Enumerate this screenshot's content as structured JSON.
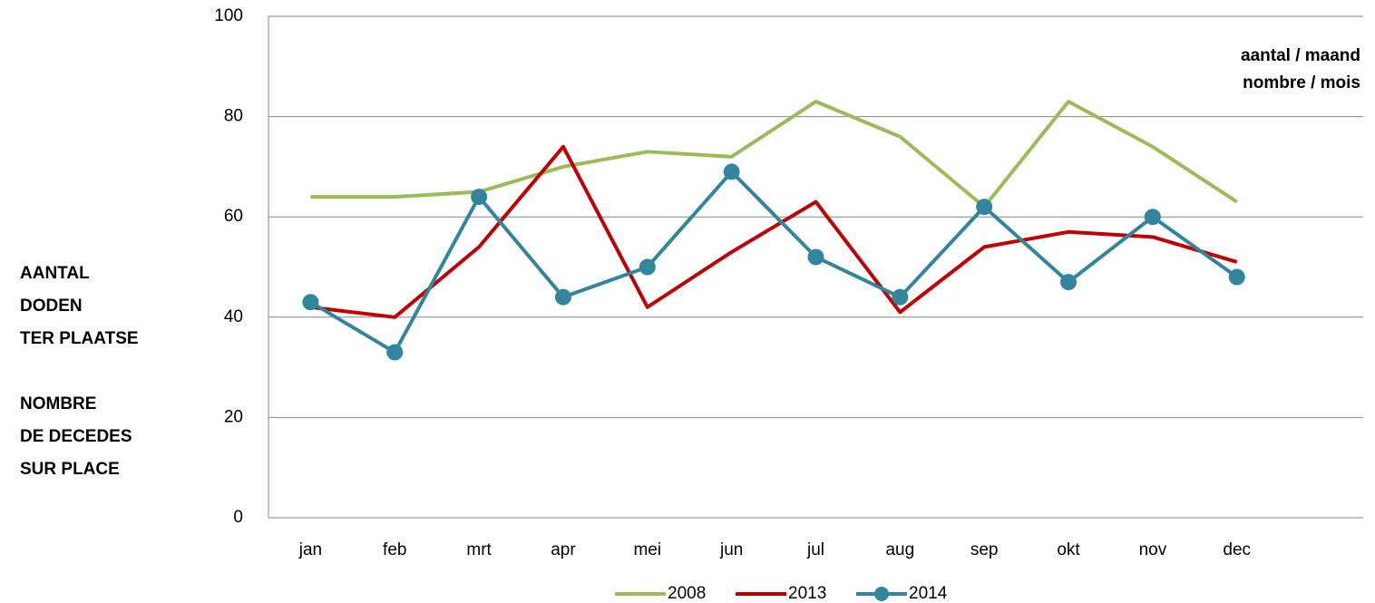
{
  "chart_data": {
    "type": "line",
    "y_label_lines": [
      "AANTAL",
      "DODEN",
      "TER PLAATSE",
      "",
      "NOMBRE",
      "DE DECEDES",
      "SUR PLACE"
    ],
    "annotation_lines": [
      "aantal / maand",
      "nombre / mois"
    ],
    "categories": [
      "jan",
      "feb",
      "mrt",
      "apr",
      "mei",
      "jun",
      "jul",
      "aug",
      "sep",
      "okt",
      "nov",
      "dec",
      null
    ],
    "series": [
      {
        "name": "2008",
        "color": "#9bbb59",
        "marker": false,
        "values": [
          64,
          64,
          65,
          70,
          73,
          72,
          83,
          76,
          62,
          83,
          74,
          63,
          null
        ]
      },
      {
        "name": "2013",
        "color": "#c00000",
        "marker": false,
        "values": [
          42,
          40,
          54,
          74,
          42,
          53,
          63,
          41,
          54,
          57,
          56,
          51,
          null
        ]
      },
      {
        "name": "2014",
        "color": "#31859c",
        "marker": true,
        "values": [
          43,
          33,
          64,
          44,
          50,
          69,
          52,
          44,
          62,
          47,
          60,
          48,
          null
        ]
      }
    ],
    "ylim": [
      0,
      100
    ],
    "yticks": [
      0,
      20,
      40,
      60,
      80,
      100
    ],
    "grid": true,
    "legend": "bottom"
  }
}
